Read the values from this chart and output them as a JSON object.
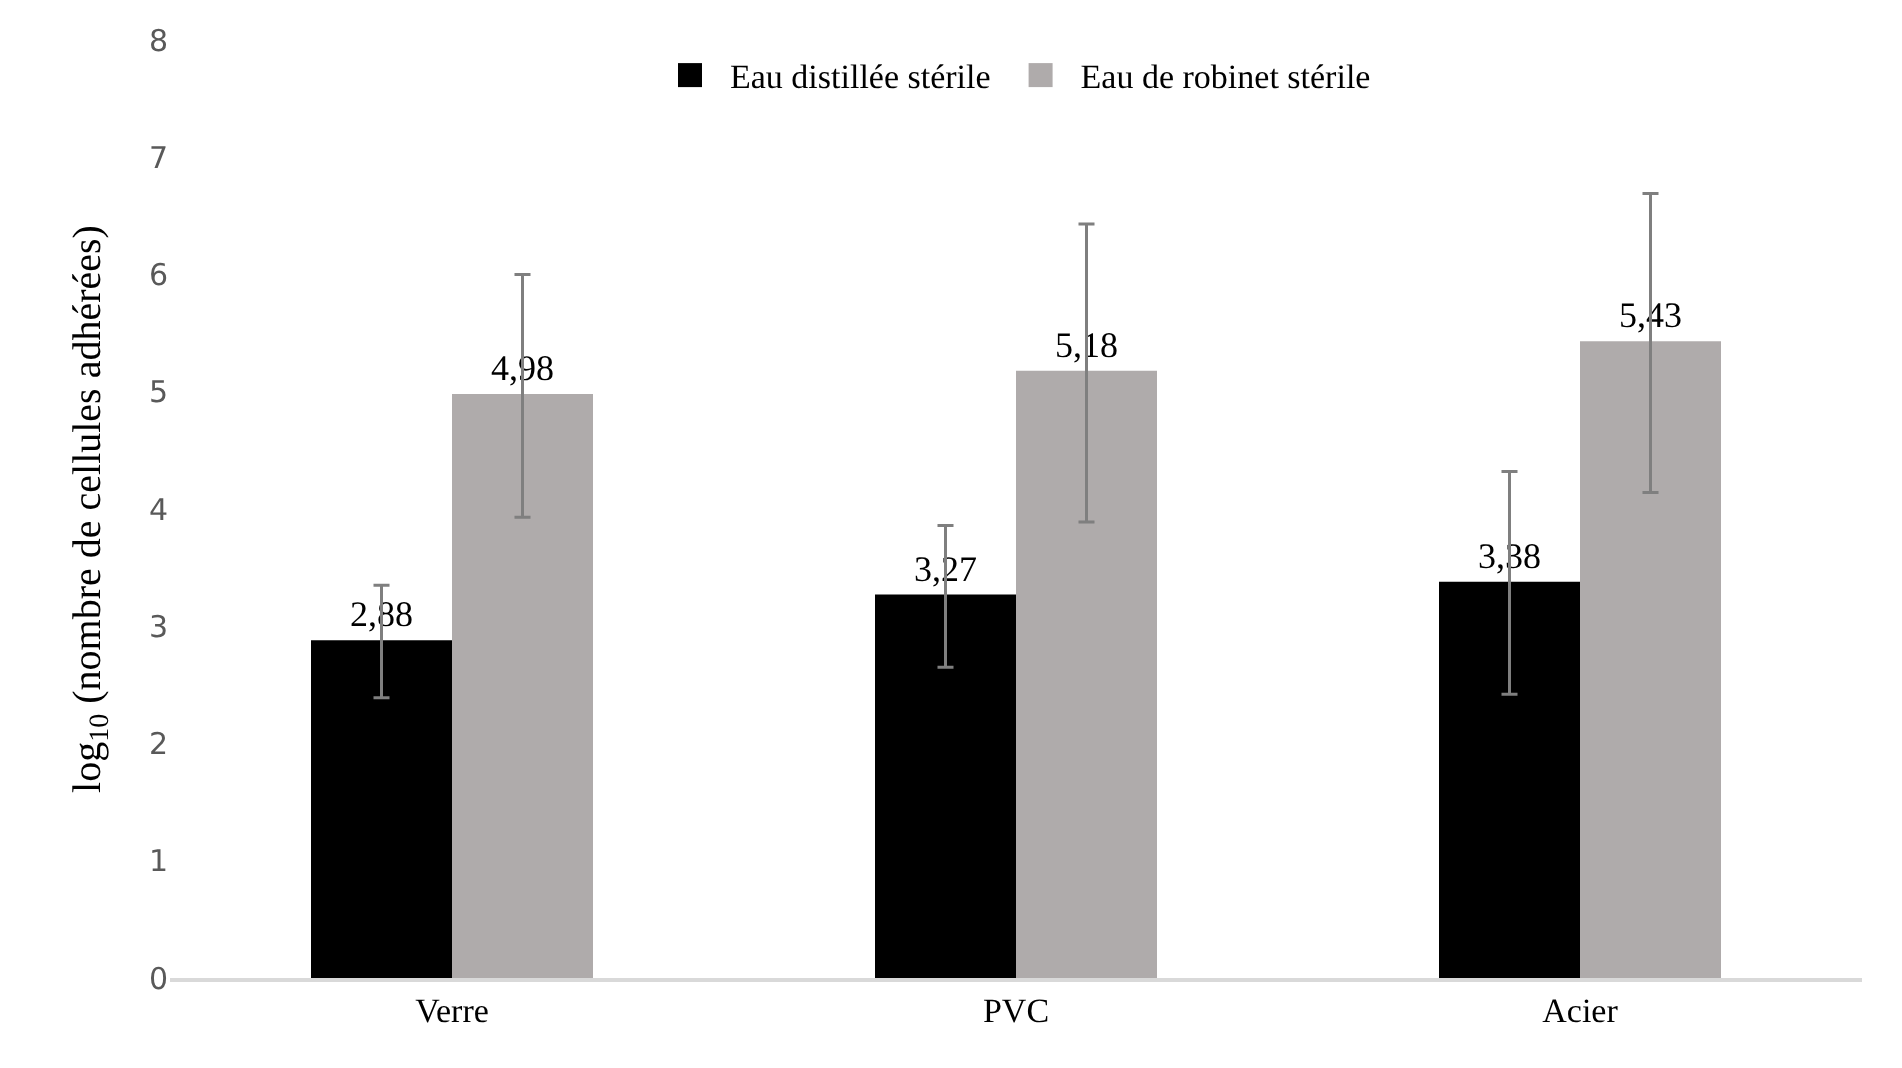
{
  "chart_data": {
    "type": "bar",
    "ylabel": "log$_{10}$ (nombre de cellules adhérées)",
    "categories": [
      "Verre",
      "PVC",
      "Acier"
    ],
    "series": [
      {
        "name": "Eau distillée stérile",
        "color": "#000000",
        "values": [
          2.88,
          3.27,
          3.38
        ],
        "value_labels": [
          "2,88",
          "3,27",
          "3,38"
        ],
        "errors": [
          [
            2.39,
            3.35
          ],
          [
            2.65,
            3.86
          ],
          [
            2.42,
            4.32
          ]
        ]
      },
      {
        "name": "Eau de robinet stérile",
        "color": "#afabab",
        "values": [
          4.98,
          5.18,
          5.43
        ],
        "value_labels": [
          "4,98",
          "5,18",
          "5,43"
        ],
        "errors": [
          [
            3.93,
            6.0
          ],
          [
            3.89,
            6.43
          ],
          [
            4.14,
            6.69
          ]
        ]
      }
    ],
    "ylim": [
      0,
      8
    ],
    "yticks": [
      0,
      1,
      2,
      3,
      4,
      5,
      6,
      7,
      8
    ],
    "grid": false,
    "legend": "top"
  }
}
